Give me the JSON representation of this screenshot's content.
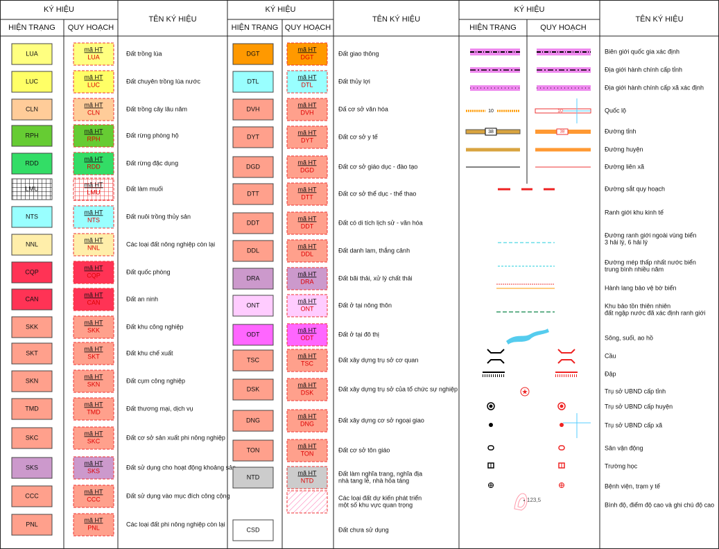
{
  "header": {
    "symbol": "KÝ HIỆU",
    "current": "HIỆN TRẠNG",
    "planned": "QUY HOẠCH",
    "name": "TÊN KÝ HIỆU"
  },
  "planned_label": "mã HT",
  "land_groups": [
    {
      "rows": [
        {
          "code": "LUA",
          "color": "#ffff80",
          "name": "Đất trồng lúa"
        },
        {
          "code": "LUC",
          "color": "#ffff66",
          "name": "Đất chuyên trồng lúa nước"
        },
        {
          "code": "CLN",
          "color": "#ffcc99",
          "name": "Đất trồng cây lâu năm"
        },
        {
          "code": "RPH",
          "color": "#66cc33",
          "name": "Đất rừng phòng hộ"
        },
        {
          "code": "RDD",
          "color": "#33dd66",
          "name": "Đất rừng đặc dụng"
        },
        {
          "code": "LMU",
          "color": "#ffffff",
          "pattern": "grid",
          "name": "Đất làm muối"
        },
        {
          "code": "NTS",
          "color": "#99ffff",
          "name": "Đất nuôi trồng thủy sản"
        },
        {
          "code": "NNL",
          "color": "#ffeeaa",
          "name": "Các loại đất nông nghiệp còn lại"
        },
        {
          "code": "CQP",
          "color": "#ff3355",
          "name": "Đất quốc phòng"
        },
        {
          "code": "CAN",
          "color": "#ff3355",
          "name": "Đất an ninh"
        },
        {
          "code": "SKK",
          "color": "#ffa08c",
          "name": "Đất khu công nghiệp"
        },
        {
          "code": "SKT",
          "color": "#ffa08c",
          "name": "Đất khu chế xuất"
        },
        {
          "code": "SKN",
          "color": "#ffa08c",
          "name": "Đất cụm công nghiệp"
        },
        {
          "code": "TMD",
          "color": "#ffa08c",
          "name": "Đất thương mại, dịch vụ"
        },
        {
          "code": "SKC",
          "color": "#ffa08c",
          "name": "Đất cơ sở sản xuất phi nông nghiệp"
        },
        {
          "code": "SKS",
          "color": "#cc99cc",
          "name": "Đất sử dụng cho hoạt động khoảng sản"
        },
        {
          "code": "CCC",
          "color": "#ffa08c",
          "name": "Đất sử dụng vào mục đích công cộng"
        },
        {
          "code": "PNL",
          "color": "#ffa08c",
          "name": "Các loại đất phi nông nghiệp còn lại"
        }
      ]
    },
    {
      "rows": [
        {
          "code": "DGT",
          "color": "#ff9900",
          "name": "Đất giao thông"
        },
        {
          "code": "DTL",
          "color": "#99ffff",
          "name": "Đất thủy lợi"
        },
        {
          "code": "DVH",
          "color": "#ffa08c",
          "name": "Đấ cơ sở văn hóa"
        },
        {
          "code": "DYT",
          "color": "#ffa08c",
          "name": "Đất cơ sở y tế"
        },
        {
          "code": "DGD",
          "color": "#ffa08c",
          "name": "Đất cơ sở giáo dục - đào tạo"
        },
        {
          "code": "DTT",
          "color": "#ffa08c",
          "name": "Đất cơ sở thể dục - thể thao"
        },
        {
          "code": "DDT",
          "color": "#ffa08c",
          "name": "Đất có di tích lịch sử - văn hóa"
        },
        {
          "code": "DDL",
          "color": "#ffa08c",
          "name": "Đất danh lam, thắng cảnh"
        },
        {
          "code": "DRA",
          "color": "#cc99cc",
          "name": "Đất bãi thải, xử lý chất thải"
        },
        {
          "code": "ONT",
          "color": "#ffccff",
          "name": "Đất ở tại nông thôn"
        },
        {
          "code": "ODT",
          "color": "#ff66ff",
          "name": "Đất ở tại đô thị"
        },
        {
          "code": "TSC",
          "color": "#ffa08c",
          "name": "Đất xây dựng trụ sở cơ quan"
        },
        {
          "code": "DSK",
          "color": "#ffa08c",
          "name": "Đất xây dựng trụ sở của tổ chức sự nghiệp"
        },
        {
          "code": "DNG",
          "color": "#ffa08c",
          "name": "Đất xây dựng cơ sở ngoại giao"
        },
        {
          "code": "TON",
          "color": "#ffa08c",
          "name": "Đất cơ sở tôn giáo"
        },
        {
          "code": "NTD",
          "color": "#cccccc",
          "name": [
            "Đất làm nghĩa trang, nghĩa địa",
            "nhà tang lễ, nhà hỏa táng"
          ]
        },
        {
          "pattern": "hatch",
          "name": [
            "Các loại đất dự kiến phát triển",
            "một số khu vực quan trọng"
          ]
        },
        {
          "code": "CSD",
          "color": "#ffffff",
          "planned": false,
          "name": "Đất chưa sử dụng"
        }
      ]
    }
  ],
  "symbol_rows": [
    {
      "name": "Biên giới quốc gia xác định"
    },
    {
      "name": "Địa giới hành chính cấp tỉnh"
    },
    {
      "name": "Địa giới hành chính cấp xã xác định"
    },
    {
      "name": "Quốc lộ",
      "label": "10"
    },
    {
      "name": "Đường tỉnh",
      "label": "38"
    },
    {
      "name": "Đường huyện"
    },
    {
      "name": "Đường liên xã"
    },
    {
      "name": "Đường sắt quy hoạch"
    },
    {
      "name": "Ranh giới khu kinh tế"
    },
    {
      "name": [
        "Đường ranh giới ngoài vùng biển",
        "3 hải lý, 6 hải lý"
      ]
    },
    {
      "name": [
        "Đường mép thấp nhất nước biển",
        "trung bình nhiều năm"
      ]
    },
    {
      "name": "Hành lang bảo vệ bờ biển"
    },
    {
      "name": [
        "Khu bảo tồn thiên nhiên",
        "đất ngập nước đã xác định ranh giới"
      ]
    },
    {
      "name": "Sông, suối, ao hồ"
    },
    {
      "name": "Cầu"
    },
    {
      "name": "Đập"
    },
    {
      "name": "Trụ sở UBND cấp tỉnh"
    },
    {
      "name": "Trụ sở UBND cấp huyện"
    },
    {
      "name": "Trụ sở UBND cấp xã"
    },
    {
      "name": "Sân vận động"
    },
    {
      "name": "Trường học"
    },
    {
      "name": "Bệnh viện, trạm y tế"
    },
    {
      "name": "Bình độ, điểm độ cao và ghi chú độ cao",
      "label": "123,5"
    }
  ]
}
